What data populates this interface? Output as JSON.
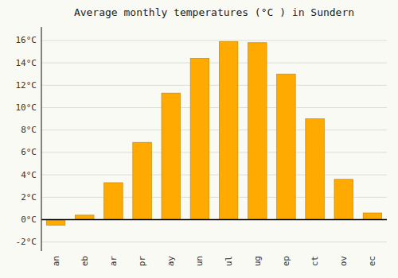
{
  "chart_data": {
    "type": "bar",
    "title": "Average monthly temperatures (°C ) in Sundern",
    "categories": [
      "an",
      "eb",
      "ar",
      "pr",
      "ay",
      "un",
      "ul",
      "ug",
      "ep",
      "ct",
      "ov",
      "ec"
    ],
    "values": [
      -0.5,
      0.4,
      3.3,
      6.9,
      11.3,
      14.4,
      15.9,
      15.8,
      13.0,
      9.0,
      3.6,
      0.6
    ],
    "color": "#FFAA00",
    "ylim": [
      -2.8,
      17.2
    ],
    "yticks": [
      {
        "value": -2,
        "label": "-2°C"
      },
      {
        "value": 0,
        "label": "0°C"
      },
      {
        "value": 2,
        "label": "2°C"
      },
      {
        "value": 4,
        "label": "4°C"
      },
      {
        "value": 6,
        "label": "6°C"
      },
      {
        "value": 8,
        "label": "8°C"
      },
      {
        "value": 10,
        "label": "10°C"
      },
      {
        "value": 12,
        "label": "12°C"
      },
      {
        "value": 14,
        "label": "14°C"
      },
      {
        "value": 16,
        "label": "16°C"
      }
    ],
    "grid": true
  }
}
